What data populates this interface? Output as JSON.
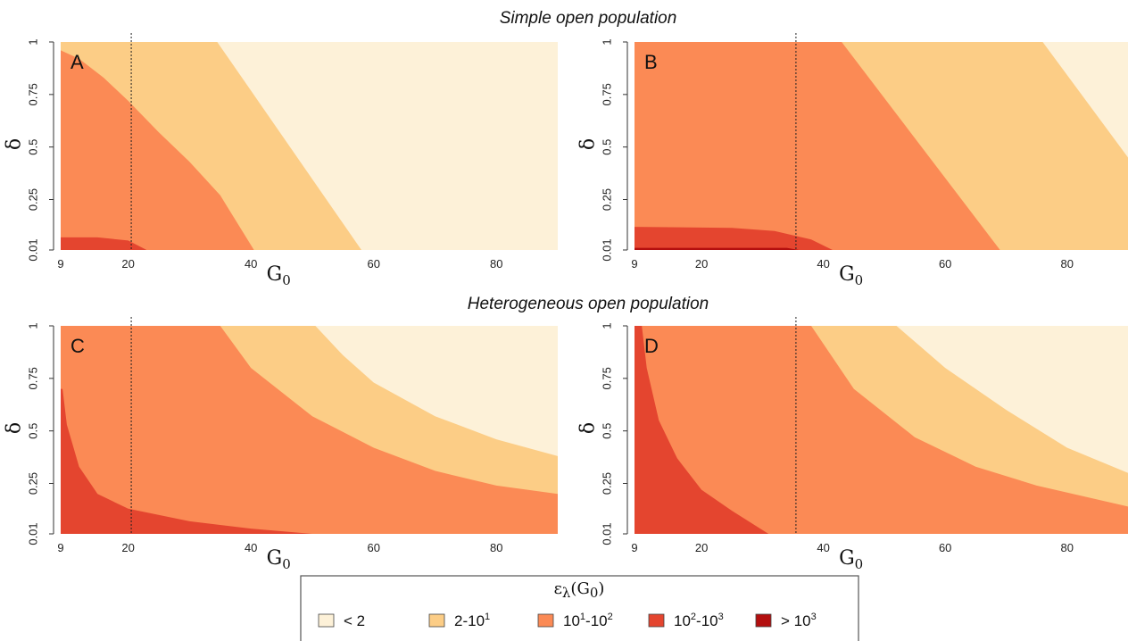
{
  "colors": {
    "c1": "#fdf1d8",
    "c2": "#fccd86",
    "c3": "#fb8a55",
    "c4": "#e4452f",
    "c5": "#b30f0f"
  },
  "sections": [
    {
      "title": "Simple open population"
    },
    {
      "title": "Heterogeneous open population"
    }
  ],
  "legend": {
    "title_main": "ε",
    "title_sub": "λ",
    "title_tail": "(G",
    "title_tail_sub": "0",
    "title_close": ")",
    "items": [
      {
        "label": "< 2",
        "sup": "",
        "label_tail": "",
        "sup2": "",
        "color_key": "c1"
      },
      {
        "label": "2-10",
        "sup": "1",
        "label_tail": "",
        "sup2": "",
        "color_key": "c2"
      },
      {
        "label": "10",
        "sup": "1",
        "label_tail": "-10",
        "sup2": "2",
        "color_key": "c3"
      },
      {
        "label": "10",
        "sup": "2",
        "label_tail": "-10",
        "sup2": "3",
        "color_key": "c4"
      },
      {
        "label": "> 10",
        "sup": "3",
        "label_tail": "",
        "sup2": "",
        "color_key": "c5"
      }
    ]
  },
  "chart_data": [
    {
      "type": "heatmap",
      "panel": "A",
      "section": "Simple open population",
      "xlabel": "G",
      "xlabel_sub": "0",
      "ylabel": "δ",
      "xlim": [
        9,
        90
      ],
      "ylim": [
        0.01,
        1
      ],
      "xticks": [
        9,
        20,
        40,
        60,
        80
      ],
      "yticks": [
        "0.01",
        "0.25",
        "0.5",
        "0.75",
        "1"
      ],
      "vline_x": 20.5,
      "regions": [
        {
          "class": "10^2-10^3",
          "color_key": "c4",
          "boundary": [
            [
              9,
              0.07
            ],
            [
              15,
              0.07
            ],
            [
              20,
              0.055
            ],
            [
              23,
              0.01
            ]
          ]
        },
        {
          "class": "10^1-10^2",
          "color_key": "c3",
          "boundary": [
            [
              9,
              0.96
            ],
            [
              12,
              0.92
            ],
            [
              16,
              0.83
            ],
            [
              20,
              0.72
            ],
            [
              25,
              0.57
            ],
            [
              30,
              0.43
            ],
            [
              35,
              0.27
            ],
            [
              40.5,
              0.01
            ]
          ]
        },
        {
          "class": "2-10^1",
          "color_key": "c2",
          "boundary": [
            [
              34.5,
              1
            ],
            [
              58,
              0.01
            ]
          ]
        }
      ]
    },
    {
      "type": "heatmap",
      "panel": "B",
      "section": "Simple open population",
      "xlabel": "G",
      "xlabel_sub": "0",
      "ylabel": "δ",
      "xlim": [
        9,
        90
      ],
      "ylim": [
        0.01,
        1
      ],
      "xticks": [
        9,
        20,
        40,
        60,
        80
      ],
      "yticks": [
        "0.01",
        "0.25",
        "0.5",
        "0.75",
        "1"
      ],
      "vline_x": 35.5,
      "regions": [
        {
          "class": "> 10^3",
          "color_key": "c5",
          "boundary": [
            [
              9,
              0.02
            ],
            [
              34,
              0.02
            ],
            [
              36,
              0.01
            ]
          ]
        },
        {
          "class": "10^2-10^3",
          "color_key": "c4",
          "boundary": [
            [
              9,
              0.12
            ],
            [
              25,
              0.115
            ],
            [
              32,
              0.1
            ],
            [
              38,
              0.06
            ],
            [
              41.5,
              0.01
            ]
          ]
        },
        {
          "class": "10^1-10^2",
          "color_key": "c3",
          "boundary": [
            [
              43,
              1
            ],
            [
              69,
              0.01
            ]
          ]
        },
        {
          "class": "2-10^1",
          "color_key": "c2",
          "boundary": [
            [
              76,
              1
            ],
            [
              90,
              0.45
            ]
          ]
        }
      ]
    },
    {
      "type": "heatmap",
      "panel": "C",
      "section": "Heterogeneous open population",
      "xlabel": "G",
      "xlabel_sub": "0",
      "ylabel": "δ",
      "xlim": [
        9,
        90
      ],
      "ylim": [
        0.01,
        1
      ],
      "xticks": [
        9,
        20,
        40,
        60,
        80
      ],
      "yticks": [
        "0.01",
        "0.25",
        "0.5",
        "0.75",
        "1"
      ],
      "vline_x": 20.5,
      "regions": [
        {
          "class": "10^2-10^3",
          "color_key": "c4",
          "boundary": [
            [
              9.3,
              0.7
            ],
            [
              10,
              0.53
            ],
            [
              12,
              0.33
            ],
            [
              15,
              0.2
            ],
            [
              20,
              0.13
            ],
            [
              30,
              0.07
            ],
            [
              40,
              0.035
            ],
            [
              50,
              0.01
            ]
          ]
        },
        {
          "class": "10^1-10^2",
          "color_key": "c3",
          "boundary": [
            [
              35,
              1
            ],
            [
              40,
              0.8
            ],
            [
              50,
              0.57
            ],
            [
              60,
              0.42
            ],
            [
              70,
              0.31
            ],
            [
              80,
              0.24
            ],
            [
              90,
              0.2
            ]
          ]
        },
        {
          "class": "2-10^1",
          "color_key": "c2",
          "boundary": [
            [
              50.5,
              1
            ],
            [
              55,
              0.86
            ],
            [
              60,
              0.73
            ],
            [
              70,
              0.57
            ],
            [
              80,
              0.46
            ],
            [
              90,
              0.38
            ]
          ]
        }
      ]
    },
    {
      "type": "heatmap",
      "panel": "D",
      "section": "Heterogeneous open population",
      "xlabel": "G",
      "xlabel_sub": "0",
      "ylabel": "δ",
      "xlim": [
        9,
        90
      ],
      "ylim": [
        0.01,
        1
      ],
      "xticks": [
        9,
        20,
        40,
        60,
        80
      ],
      "yticks": [
        "0.01",
        "0.25",
        "0.5",
        "0.75",
        "1"
      ],
      "vline_x": 35.5,
      "regions": [
        {
          "class": "10^2-10^3",
          "color_key": "c4",
          "boundary": [
            [
              10.2,
              1
            ],
            [
              11,
              0.8
            ],
            [
              13,
              0.55
            ],
            [
              16,
              0.37
            ],
            [
              20,
              0.22
            ],
            [
              25,
              0.12
            ],
            [
              31,
              0.01
            ]
          ]
        },
        {
          "class": "10^1-10^2",
          "color_key": "c3",
          "boundary": [
            [
              38,
              1
            ],
            [
              45,
              0.7
            ],
            [
              55,
              0.47
            ],
            [
              65,
              0.33
            ],
            [
              75,
              0.24
            ],
            [
              90,
              0.14
            ]
          ]
        },
        {
          "class": "2-10^1",
          "color_key": "c2",
          "boundary": [
            [
              52,
              1
            ],
            [
              60,
              0.8
            ],
            [
              70,
              0.6
            ],
            [
              80,
              0.42
            ],
            [
              90,
              0.3
            ]
          ]
        }
      ]
    }
  ]
}
